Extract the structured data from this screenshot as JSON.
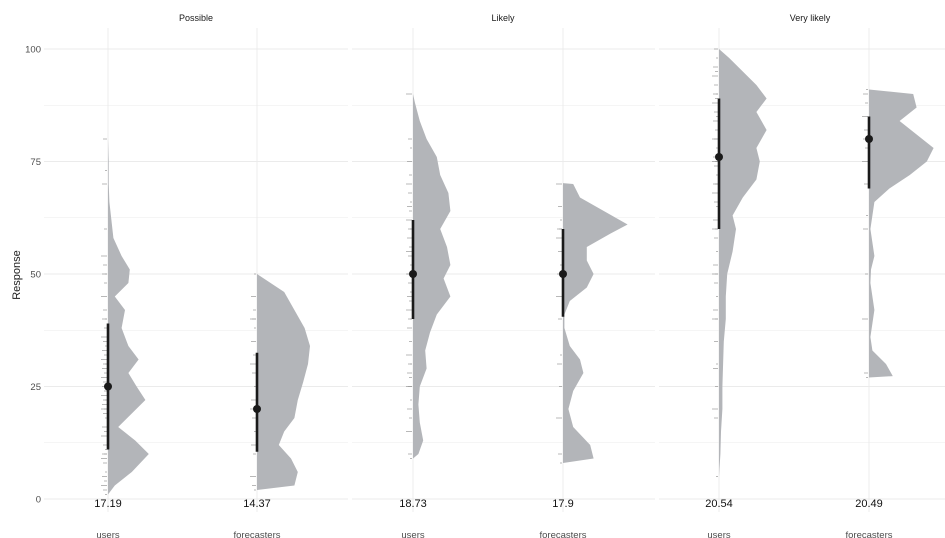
{
  "chart_data": {
    "type": "violin",
    "ylabel": "Response",
    "ylim": [
      0,
      100
    ],
    "yticks": [
      0,
      25,
      50,
      75,
      100
    ],
    "grid": true,
    "colors": {
      "violin": "#b3b5b9",
      "point": "#1a1a1a",
      "raw": "#9a9a9a"
    },
    "facets": [
      {
        "title": "Possible",
        "groups": [
          {
            "category": "users",
            "median": 25,
            "interval": [
              11,
              39
            ],
            "sd_label": "17.19",
            "density": [
              [
                1,
                0.0
              ],
              [
                3,
                0.1
              ],
              [
                6,
                0.35
              ],
              [
                10,
                0.6
              ],
              [
                13,
                0.4
              ],
              [
                16,
                0.15
              ],
              [
                19,
                0.35
              ],
              [
                22,
                0.55
              ],
              [
                25,
                0.42
              ],
              [
                28,
                0.3
              ],
              [
                31,
                0.45
              ],
              [
                34,
                0.3
              ],
              [
                38,
                0.2
              ],
              [
                42,
                0.25
              ],
              [
                45,
                0.1
              ],
              [
                48,
                0.3
              ],
              [
                51,
                0.32
              ],
              [
                54,
                0.2
              ],
              [
                58,
                0.08
              ],
              [
                62,
                0.05
              ],
              [
                66,
                0.02
              ],
              [
                70,
                0.01
              ],
              [
                75,
                0.01
              ],
              [
                80,
                0.0
              ]
            ],
            "raw": [
              1,
              2,
              3,
              4,
              5,
              6,
              8,
              9,
              10,
              10,
              11,
              12,
              14,
              15,
              16,
              18,
              19,
              20,
              20,
              21,
              22,
              22,
              23,
              24,
              25,
              25,
              26,
              27,
              28,
              29,
              30,
              30,
              31,
              32,
              33,
              34,
              35,
              36,
              38,
              40,
              40,
              42,
              45,
              48,
              50,
              50,
              52,
              54,
              60,
              70,
              73,
              80
            ]
          },
          {
            "category": "forecasters",
            "median": 20,
            "interval": [
              10.5,
              32.5
            ],
            "sd_label": "14.37",
            "density": [
              [
                2,
                0.0
              ],
              [
                3,
                0.55
              ],
              [
                6,
                0.6
              ],
              [
                9,
                0.5
              ],
              [
                12,
                0.32
              ],
              [
                15,
                0.4
              ],
              [
                18,
                0.55
              ],
              [
                22,
                0.6
              ],
              [
                26,
                0.68
              ],
              [
                30,
                0.75
              ],
              [
                34,
                0.78
              ],
              [
                38,
                0.7
              ],
              [
                42,
                0.55
              ],
              [
                46,
                0.4
              ],
              [
                50,
                0.0
              ]
            ],
            "raw": [
              2,
              3,
              5,
              10,
              12,
              15,
              18,
              20,
              20,
              22,
              25,
              28,
              30,
              32,
              35,
              38,
              40,
              40,
              42,
              45,
              50
            ]
          }
        ]
      },
      {
        "title": "Likely",
        "groups": [
          {
            "category": "users",
            "median": 50,
            "interval": [
              40,
              62
            ],
            "sd_label": "18.73",
            "density": [
              [
                9,
                0.0
              ],
              [
                10,
                0.08
              ],
              [
                13,
                0.15
              ],
              [
                17,
                0.1
              ],
              [
                21,
                0.08
              ],
              [
                25,
                0.1
              ],
              [
                29,
                0.2
              ],
              [
                33,
                0.18
              ],
              [
                37,
                0.25
              ],
              [
                41,
                0.35
              ],
              [
                45,
                0.55
              ],
              [
                49,
                0.45
              ],
              [
                52,
                0.55
              ],
              [
                56,
                0.5
              ],
              [
                60,
                0.4
              ],
              [
                64,
                0.55
              ],
              [
                68,
                0.52
              ],
              [
                72,
                0.4
              ],
              [
                76,
                0.35
              ],
              [
                80,
                0.2
              ],
              [
                84,
                0.1
              ],
              [
                88,
                0.03
              ],
              [
                90,
                0.0
              ]
            ],
            "raw": [
              9,
              10,
              15,
              18,
              20,
              22,
              25,
              25,
              27,
              28,
              30,
              30,
              32,
              35,
              38,
              40,
              40,
              42,
              44,
              45,
              46,
              48,
              50,
              50,
              50,
              52,
              54,
              55,
              56,
              58,
              60,
              60,
              62,
              64,
              65,
              66,
              68,
              70,
              72,
              75,
              78,
              80,
              90
            ]
          },
          {
            "category": "forecasters",
            "median": 50,
            "interval": [
              40.5,
              60
            ],
            "sd_label": "17.9",
            "density": [
              [
                8,
                0.0
              ],
              [
                9,
                0.45
              ],
              [
                12,
                0.4
              ],
              [
                16,
                0.15
              ],
              [
                20,
                0.08
              ],
              [
                24,
                0.15
              ],
              [
                28,
                0.3
              ],
              [
                31,
                0.25
              ],
              [
                34,
                0.1
              ],
              [
                38,
                0.02
              ],
              [
                41,
                0.02
              ],
              [
                44,
                0.1
              ],
              [
                47,
                0.35
              ],
              [
                50,
                0.45
              ],
              [
                53,
                0.35
              ],
              [
                56,
                0.35
              ],
              [
                59,
                0.7
              ],
              [
                61,
                0.95
              ],
              [
                64,
                0.6
              ],
              [
                67,
                0.25
              ],
              [
                70,
                0.15
              ],
              [
                70.2,
                0.0
              ]
            ],
            "raw": [
              8,
              10,
              18,
              25,
              30,
              32,
              40,
              45,
              50,
              50,
              52,
              55,
              58,
              60,
              60,
              62,
              65,
              70
            ]
          }
        ]
      },
      {
        "title": "Very likely",
        "groups": [
          {
            "category": "users",
            "median": 76,
            "interval": [
              60,
              89
            ],
            "sd_label": "20.54",
            "density": [
              [
                5,
                0.0
              ],
              [
                10,
                0.02
              ],
              [
                15,
                0.03
              ],
              [
                20,
                0.05
              ],
              [
                25,
                0.05
              ],
              [
                30,
                0.06
              ],
              [
                35,
                0.07
              ],
              [
                40,
                0.1
              ],
              [
                45,
                0.1
              ],
              [
                50,
                0.12
              ],
              [
                55,
                0.2
              ],
              [
                60,
                0.25
              ],
              [
                63,
                0.2
              ],
              [
                67,
                0.35
              ],
              [
                71,
                0.55
              ],
              [
                75,
                0.6
              ],
              [
                78,
                0.55
              ],
              [
                82,
                0.7
              ],
              [
                86,
                0.55
              ],
              [
                89,
                0.7
              ],
              [
                92,
                0.55
              ],
              [
                95,
                0.35
              ],
              [
                98,
                0.15
              ],
              [
                100,
                0.0
              ]
            ],
            "raw": [
              5,
              18,
              20,
              25,
              29,
              30,
              35,
              40,
              40,
              42,
              45,
              48,
              50,
              50,
              52,
              55,
              58,
              60,
              60,
              62,
              65,
              66,
              68,
              70,
              70,
              72,
              74,
              75,
              75,
              76,
              78,
              80,
              80,
              82,
              84,
              85,
              86,
              88,
              89,
              90,
              90,
              92,
              94,
              95,
              96,
              98,
              100
            ]
          },
          {
            "category": "forecasters",
            "median": 80,
            "interval": [
              69,
              85
            ],
            "sd_label": "20.49",
            "density": [
              [
                27,
                0.0
              ],
              [
                27.3,
                0.35
              ],
              [
                30,
                0.25
              ],
              [
                33,
                0.05
              ],
              [
                36,
                0.02
              ],
              [
                39,
                0.05
              ],
              [
                42,
                0.08
              ],
              [
                45,
                0.05
              ],
              [
                48,
                0.02
              ],
              [
                51,
                0.03
              ],
              [
                54,
                0.08
              ],
              [
                57,
                0.05
              ],
              [
                60,
                0.02
              ],
              [
                63,
                0.05
              ],
              [
                66,
                0.08
              ],
              [
                69,
                0.3
              ],
              [
                72,
                0.6
              ],
              [
                75,
                0.85
              ],
              [
                78,
                0.95
              ],
              [
                81,
                0.7
              ],
              [
                84,
                0.45
              ],
              [
                87,
                0.7
              ],
              [
                90,
                0.65
              ],
              [
                91,
                0.0
              ]
            ],
            "raw": [
              27,
              28,
              40,
              50,
              60,
              63,
              70,
              75,
              78,
              80,
              80,
              82,
              85,
              88,
              90,
              91
            ]
          }
        ]
      }
    ]
  }
}
